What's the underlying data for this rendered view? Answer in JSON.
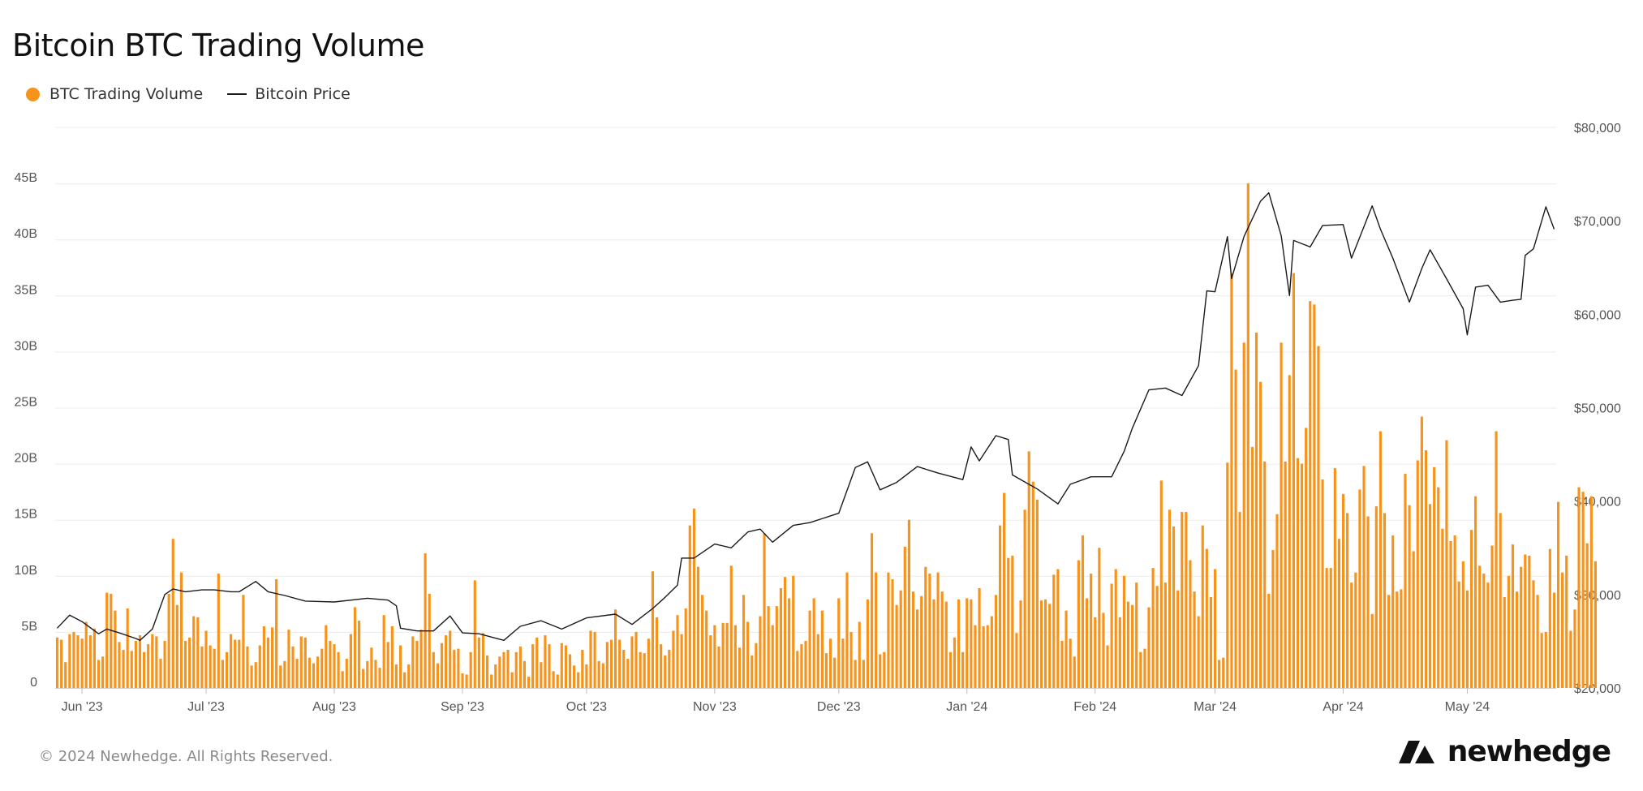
{
  "chart_data": {
    "type": "bar",
    "title": "Bitcoin BTC Trading Volume",
    "legend_placement": "top-left",
    "grid": true,
    "x_range": [
      "2023-05-26",
      "2024-05-22"
    ],
    "x_ticks": [
      "Jun '23",
      "Jul '23",
      "Aug '23",
      "Sep '23",
      "Oct '23",
      "Nov '23",
      "Dec '23",
      "Jan '24",
      "Feb '24",
      "Mar '24",
      "Apr '24",
      "May '24"
    ],
    "x_tick_dates": [
      "2023-06-01",
      "2023-07-01",
      "2023-08-01",
      "2023-09-01",
      "2023-10-01",
      "2023-11-01",
      "2023-12-01",
      "2024-01-01",
      "2024-02-01",
      "2024-03-01",
      "2024-04-01",
      "2024-05-01"
    ],
    "y_left": {
      "ticks": [
        "0",
        "5B",
        "10B",
        "15B",
        "20B",
        "25B",
        "30B",
        "35B",
        "40B",
        "45B"
      ],
      "min": 0,
      "max": 50
    },
    "y_right": {
      "ticks": [
        "$20,000",
        "$30,000",
        "$40,000",
        "$50,000",
        "$60,000",
        "$70,000",
        "$80,000"
      ],
      "min": 20000,
      "max": 80000
    },
    "series": [
      {
        "name": "BTC Trading Volume",
        "type": "bar",
        "color": "#f7931a",
        "axis": "left",
        "unit": "billions",
        "start_date": "2023-05-26",
        "interval": "daily",
        "values": [
          4.5,
          4.3,
          2.3,
          4.8,
          5.0,
          4.7,
          4.4,
          5.9,
          4.7,
          5.3,
          2.5,
          2.8,
          8.5,
          8.4,
          6.9,
          4.1,
          3.4,
          7.1,
          3.3,
          4.2,
          4.7,
          3.2,
          3.9,
          4.8,
          4.6,
          2.6,
          4.2,
          8.4,
          13.3,
          7.4,
          10.3,
          4.2,
          4.5,
          6.4,
          6.3,
          3.7,
          5.1,
          3.8,
          3.5,
          10.2,
          2.5,
          3.2,
          4.8,
          4.3,
          4.3,
          8.3,
          3.7,
          2.0,
          2.3,
          3.8,
          5.5,
          4.5,
          5.4,
          9.7,
          2.0,
          2.4,
          5.2,
          3.7,
          2.6,
          4.6,
          4.5,
          2.7,
          2.2,
          2.8,
          3.5,
          5.6,
          4.2,
          3.9,
          3.2,
          1.5,
          2.6,
          4.8,
          7.2,
          6.0,
          1.7,
          2.4,
          3.6,
          2.5,
          1.8,
          6.5,
          4.1,
          5.5,
          2.1,
          3.8,
          1.4,
          2.1,
          4.6,
          4.2,
          5.2,
          12.0,
          8.4,
          3.2,
          2.2,
          4.0,
          4.7,
          5.1,
          3.4,
          3.5,
          1.3,
          1.2,
          3.2,
          9.6,
          4.5,
          4.9,
          2.9,
          1.2,
          2.1,
          2.8,
          3.2,
          3.4,
          1.4,
          3.2,
          3.7,
          2.4,
          1.0,
          3.9,
          4.5,
          2.3,
          4.7,
          3.9,
          1.5,
          1.2,
          4.0,
          3.8,
          3.0,
          2.0,
          1.4,
          3.4,
          2.1,
          5.1,
          5.0,
          2.4,
          2.2,
          4.1,
          4.3,
          7.0,
          4.3,
          3.4,
          2.6,
          4.6,
          5.0,
          3.2,
          3.1,
          4.4,
          10.4,
          6.3,
          3.9,
          2.9,
          3.4,
          5.1,
          6.5,
          4.8,
          7.1,
          14.5,
          16.0,
          10.8,
          8.3,
          6.9,
          4.7,
          5.6,
          3.7,
          5.8,
          5.8,
          10.9,
          5.6,
          3.6,
          8.3,
          5.9,
          2.9,
          4.0,
          6.4,
          13.8,
          7.3,
          5.6,
          7.3,
          8.9,
          9.9,
          8.0,
          10.0,
          3.3,
          3.9,
          4.2,
          6.9,
          8.0,
          4.8,
          6.9,
          3.1,
          4.4,
          2.7,
          8.0,
          4.4,
          10.3,
          5.0,
          2.5,
          5.9,
          2.5,
          7.9,
          13.8,
          10.3,
          3.0,
          3.2,
          10.3,
          9.7,
          7.4,
          8.7,
          12.6,
          15.0,
          8.6,
          7.0,
          8.2,
          10.8,
          10.2,
          7.9,
          10.3,
          8.6,
          7.7,
          3.2,
          4.5,
          7.9,
          3.2,
          8.0,
          7.9,
          5.6,
          8.9,
          5.5,
          5.6,
          6.4,
          8.3,
          14.5,
          17.4,
          11.6,
          11.8,
          4.9,
          7.8,
          15.9,
          21.1,
          18.4,
          16.8,
          7.8,
          7.9,
          7.5,
          10.1,
          10.6,
          4.2,
          6.9,
          4.4,
          2.8,
          11.4,
          13.6,
          8.0,
          10.2,
          6.3,
          12.5,
          6.7,
          3.8,
          9.3,
          10.6,
          6.3,
          10.0,
          7.7,
          7.4,
          9.4,
          3.2,
          3.5,
          7.2,
          10.7,
          9.1,
          18.5,
          9.4,
          15.9,
          14.4,
          8.7,
          15.7,
          15.7,
          11.4,
          8.6,
          6.4,
          14.5,
          12.4,
          8.1,
          10.6,
          2.5,
          2.7,
          20.1,
          37.0,
          28.4,
          15.7,
          30.8,
          45.0,
          21.5,
          31.7,
          27.3,
          20.2,
          8.4,
          12.3,
          15.5,
          30.8,
          20.2,
          27.9,
          37.0,
          20.5,
          20.0,
          23.2,
          34.5,
          34.2,
          30.5,
          18.6,
          10.7,
          10.7,
          19.6,
          13.3,
          17.3,
          15.6,
          9.4,
          10.3,
          17.7,
          19.8,
          15.3,
          6.6,
          16.2,
          22.9,
          15.6,
          8.3,
          13.6,
          8.6,
          8.8,
          19.1,
          16.3,
          12.2,
          20.3,
          24.2,
          21.2,
          16.4,
          19.7,
          17.9,
          14.2,
          22.1,
          13.1,
          13.6,
          9.5,
          11.3,
          8.7,
          14.1,
          17.1,
          10.9,
          10.2,
          9.4,
          12.7,
          22.9,
          15.6,
          8.1,
          10.0,
          12.8,
          8.6,
          10.8,
          11.9,
          11.8,
          9.6,
          8.3,
          4.9,
          5.0,
          12.4,
          8.5,
          16.6,
          10.3,
          11.8,
          5.1,
          7.0,
          17.9,
          17.5,
          12.9,
          17.1,
          11.3
        ]
      },
      {
        "name": "Bitcoin Price",
        "type": "line",
        "color": "#1a1a1a",
        "axis": "right",
        "unit": "USD",
        "points": [
          [
            "2023-05-26",
            26400
          ],
          [
            "2023-05-29",
            27800
          ],
          [
            "2023-06-01",
            27100
          ],
          [
            "2023-06-05",
            25800
          ],
          [
            "2023-06-07",
            26300
          ],
          [
            "2023-06-10",
            25900
          ],
          [
            "2023-06-14",
            25300
          ],
          [
            "2023-06-15",
            25100
          ],
          [
            "2023-06-18",
            26300
          ],
          [
            "2023-06-21",
            30000
          ],
          [
            "2023-06-23",
            30600
          ],
          [
            "2023-06-26",
            30300
          ],
          [
            "2023-06-30",
            30500
          ],
          [
            "2023-07-03",
            30500
          ],
          [
            "2023-07-07",
            30300
          ],
          [
            "2023-07-09",
            30300
          ],
          [
            "2023-07-13",
            31400
          ],
          [
            "2023-07-16",
            30300
          ],
          [
            "2023-07-20",
            29900
          ],
          [
            "2023-07-25",
            29300
          ],
          [
            "2023-08-01",
            29200
          ],
          [
            "2023-08-09",
            29600
          ],
          [
            "2023-08-14",
            29400
          ],
          [
            "2023-08-16",
            28800
          ],
          [
            "2023-08-17",
            26400
          ],
          [
            "2023-08-21",
            26100
          ],
          [
            "2023-08-25",
            26100
          ],
          [
            "2023-08-29",
            27700
          ],
          [
            "2023-09-01",
            25900
          ],
          [
            "2023-09-05",
            25800
          ],
          [
            "2023-09-11",
            25100
          ],
          [
            "2023-09-15",
            26600
          ],
          [
            "2023-09-20",
            27200
          ],
          [
            "2023-09-25",
            26300
          ],
          [
            "2023-10-01",
            27500
          ],
          [
            "2023-10-08",
            27900
          ],
          [
            "2023-10-12",
            26800
          ],
          [
            "2023-10-17",
            28500
          ],
          [
            "2023-10-20",
            29700
          ],
          [
            "2023-10-23",
            31000
          ],
          [
            "2023-10-24",
            33900
          ],
          [
            "2023-10-27",
            33900
          ],
          [
            "2023-11-01",
            35400
          ],
          [
            "2023-11-05",
            35000
          ],
          [
            "2023-11-09",
            36700
          ],
          [
            "2023-11-12",
            37000
          ],
          [
            "2023-11-15",
            35600
          ],
          [
            "2023-11-20",
            37400
          ],
          [
            "2023-11-24",
            37700
          ],
          [
            "2023-12-01",
            38700
          ],
          [
            "2023-12-05",
            43600
          ],
          [
            "2023-12-08",
            44200
          ],
          [
            "2023-12-11",
            41200
          ],
          [
            "2023-12-15",
            42000
          ],
          [
            "2023-12-20",
            43700
          ],
          [
            "2023-12-25",
            43000
          ],
          [
            "2023-12-31",
            42300
          ],
          [
            "2024-01-02",
            45800
          ],
          [
            "2024-01-04",
            44300
          ],
          [
            "2024-01-08",
            47000
          ],
          [
            "2024-01-11",
            46600
          ],
          [
            "2024-01-12",
            42800
          ],
          [
            "2024-01-18",
            41300
          ],
          [
            "2024-01-23",
            39700
          ],
          [
            "2024-01-26",
            41800
          ],
          [
            "2024-01-31",
            42600
          ],
          [
            "2024-02-05",
            42600
          ],
          [
            "2024-02-08",
            45300
          ],
          [
            "2024-02-10",
            47800
          ],
          [
            "2024-02-14",
            51900
          ],
          [
            "2024-02-18",
            52100
          ],
          [
            "2024-02-22",
            51300
          ],
          [
            "2024-02-26",
            54500
          ],
          [
            "2024-02-28",
            62500
          ],
          [
            "2024-03-01",
            62400
          ],
          [
            "2024-03-04",
            68300
          ],
          [
            "2024-03-05",
            63800
          ],
          [
            "2024-03-08",
            68300
          ],
          [
            "2024-03-12",
            72100
          ],
          [
            "2024-03-14",
            73000
          ],
          [
            "2024-03-17",
            68400
          ],
          [
            "2024-03-19",
            62000
          ],
          [
            "2024-03-20",
            67900
          ],
          [
            "2024-03-24",
            67200
          ],
          [
            "2024-03-27",
            69500
          ],
          [
            "2024-04-01",
            69600
          ],
          [
            "2024-04-03",
            66000
          ],
          [
            "2024-04-08",
            71600
          ],
          [
            "2024-04-10",
            69100
          ],
          [
            "2024-04-13",
            66000
          ],
          [
            "2024-04-17",
            61300
          ],
          [
            "2024-04-20",
            64900
          ],
          [
            "2024-04-22",
            66900
          ],
          [
            "2024-04-26",
            63800
          ],
          [
            "2024-04-30",
            60600
          ],
          [
            "2024-05-01",
            57800
          ],
          [
            "2024-05-03",
            62900
          ],
          [
            "2024-05-06",
            63100
          ],
          [
            "2024-05-09",
            61300
          ],
          [
            "2024-05-12",
            61500
          ],
          [
            "2024-05-14",
            61600
          ],
          [
            "2024-05-15",
            66300
          ],
          [
            "2024-05-17",
            67000
          ],
          [
            "2024-05-20",
            71500
          ],
          [
            "2024-05-22",
            69100
          ]
        ]
      }
    ]
  },
  "footer": {
    "copyright": "© 2024 Newhedge. All Rights Reserved."
  },
  "logo": {
    "text": "newhedge"
  }
}
